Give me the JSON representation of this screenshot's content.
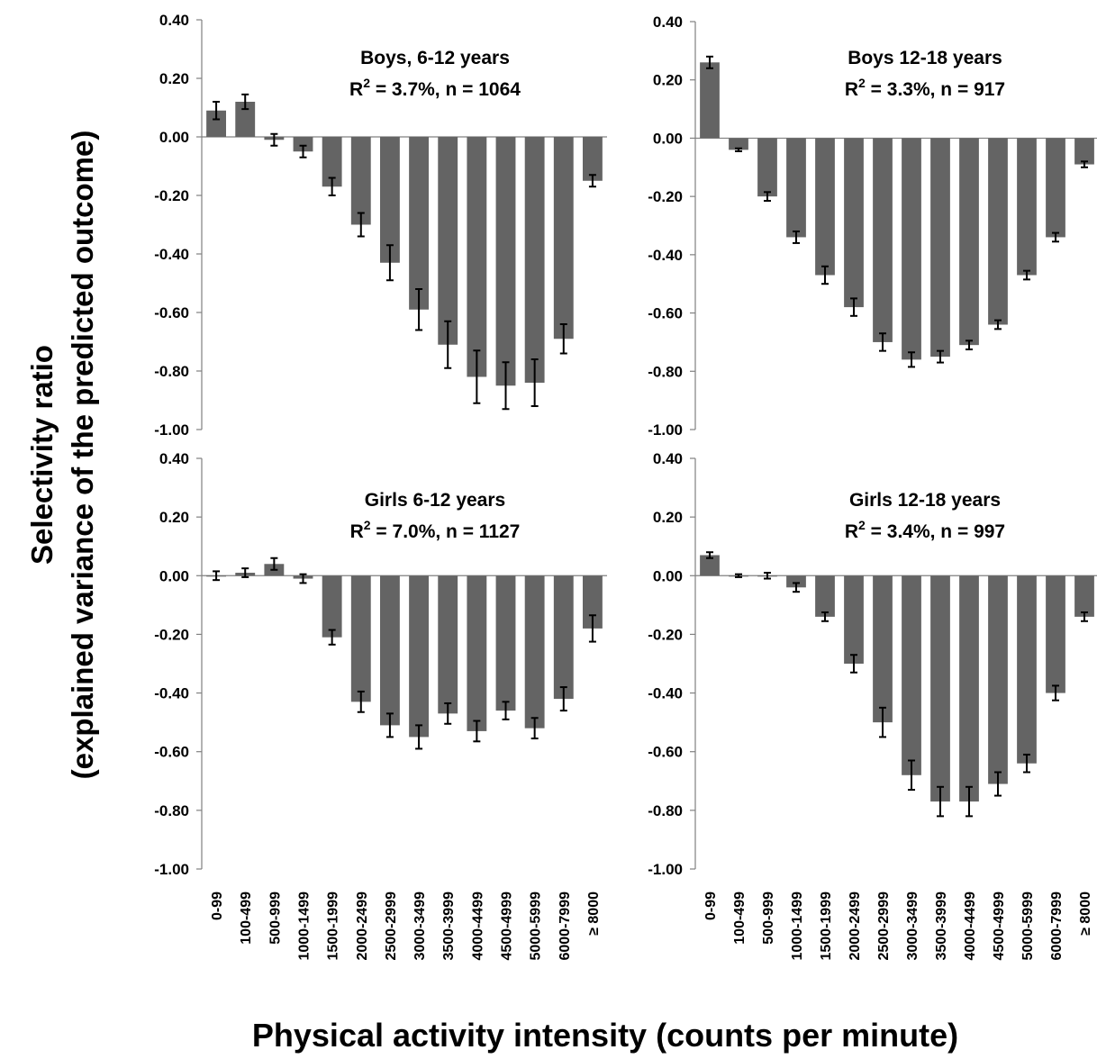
{
  "figure": {
    "ylabel_line1": "Selectivity ratio",
    "ylabel_line2": "(explained variance of the predicted outcome)",
    "xlabel": "Physical activity intensity (counts per minute)"
  },
  "chart_data": [
    {
      "type": "bar",
      "title": "Boys, 6-12 years",
      "subtitle": {
        "r2_prefix": "R",
        "r2_exp": "2",
        "text": " = 3.7%, n = 1064"
      },
      "categories": [
        "0-99",
        "100-499",
        "500-999",
        "1000-1499",
        "1500-1999",
        "2000-2499",
        "2500-2999",
        "3000-3499",
        "3500-3999",
        "4000-4499",
        "4500-4999",
        "5000-5999",
        "6000-7999",
        "≥ 8000"
      ],
      "values": [
        0.09,
        0.12,
        -0.01,
        -0.05,
        -0.17,
        -0.3,
        -0.43,
        -0.59,
        -0.71,
        -0.82,
        -0.85,
        -0.84,
        -0.69,
        -0.15
      ],
      "errors": [
        0.03,
        0.025,
        0.02,
        0.02,
        0.03,
        0.04,
        0.06,
        0.07,
        0.08,
        0.09,
        0.08,
        0.08,
        0.05,
        0.02
      ],
      "ylim": [
        -1.0,
        0.4
      ],
      "yticks": [
        "0.40",
        "0.20",
        "0.00",
        "-0.20",
        "-0.40",
        "-0.60",
        "-0.80",
        "-1.00"
      ],
      "bar_color": "#646464"
    },
    {
      "type": "bar",
      "title": "Boys 12-18 years",
      "subtitle": {
        "r2_prefix": "R",
        "r2_exp": "2",
        "text": " = 3.3%, n = 917"
      },
      "categories": [
        "0-99",
        "100-499",
        "500-999",
        "1000-1499",
        "1500-1999",
        "2000-2499",
        "2500-2999",
        "3000-3499",
        "3500-3999",
        "4000-4499",
        "4500-4999",
        "5000-5999",
        "6000-7999",
        "≥ 8000"
      ],
      "values": [
        0.26,
        -0.04,
        -0.2,
        -0.34,
        -0.47,
        -0.58,
        -0.7,
        -0.76,
        -0.75,
        -0.71,
        -0.64,
        -0.47,
        -0.34,
        -0.09
      ],
      "errors": [
        0.02,
        0.005,
        0.015,
        0.02,
        0.03,
        0.03,
        0.03,
        0.025,
        0.02,
        0.015,
        0.015,
        0.015,
        0.015,
        0.01
      ],
      "ylim": [
        -1.0,
        0.4
      ],
      "yticks": [
        "0.40",
        "0.20",
        "0.00",
        "-0.20",
        "-0.40",
        "-0.60",
        "-0.80",
        "-1.00"
      ],
      "bar_color": "#646464"
    },
    {
      "type": "bar",
      "title": "Girls 6-12 years",
      "subtitle": {
        "r2_prefix": "R",
        "r2_exp": "2",
        "text": " = 7.0%, n = 1127"
      },
      "categories": [
        "0-99",
        "100-499",
        "500-999",
        "1000-1499",
        "1500-1999",
        "2000-2499",
        "2500-2999",
        "3000-3499",
        "3500-3999",
        "4000-4499",
        "4500-4999",
        "5000-5999",
        "6000-7999",
        "≥ 8000"
      ],
      "values": [
        0.0,
        0.01,
        0.04,
        -0.01,
        -0.21,
        -0.43,
        -0.51,
        -0.55,
        -0.47,
        -0.53,
        -0.46,
        -0.52,
        -0.42,
        -0.18
      ],
      "errors": [
        0.015,
        0.015,
        0.02,
        0.015,
        0.025,
        0.035,
        0.04,
        0.04,
        0.035,
        0.035,
        0.03,
        0.035,
        0.04,
        0.045
      ],
      "ylim": [
        -1.0,
        0.4
      ],
      "yticks": [
        "0.40",
        "0.20",
        "0.00",
        "-0.20",
        "-0.40",
        "-0.60",
        "-0.80",
        "-1.00"
      ],
      "bar_color": "#646464"
    },
    {
      "type": "bar",
      "title": "Girls 12-18 years",
      "subtitle": {
        "r2_prefix": "R",
        "r2_exp": "2",
        "text": " = 3.4%, n = 997"
      },
      "categories": [
        "0-99",
        "100-499",
        "500-999",
        "1000-1499",
        "1500-1999",
        "2000-2499",
        "2500-2999",
        "3000-3499",
        "3500-3999",
        "4000-4499",
        "4500-4999",
        "5000-5999",
        "6000-7999",
        "≥ 8000"
      ],
      "values": [
        0.07,
        0.0,
        0.0,
        -0.04,
        -0.14,
        -0.3,
        -0.5,
        -0.68,
        -0.77,
        -0.77,
        -0.71,
        -0.64,
        -0.4,
        -0.14
      ],
      "errors": [
        0.01,
        0.005,
        0.01,
        0.015,
        0.015,
        0.03,
        0.05,
        0.05,
        0.05,
        0.05,
        0.04,
        0.03,
        0.025,
        0.015
      ],
      "ylim": [
        -1.0,
        0.4
      ],
      "yticks": [
        "0.40",
        "0.20",
        "0.00",
        "-0.20",
        "-0.40",
        "-0.60",
        "-0.80",
        "-1.00"
      ],
      "bar_color": "#646464"
    }
  ]
}
